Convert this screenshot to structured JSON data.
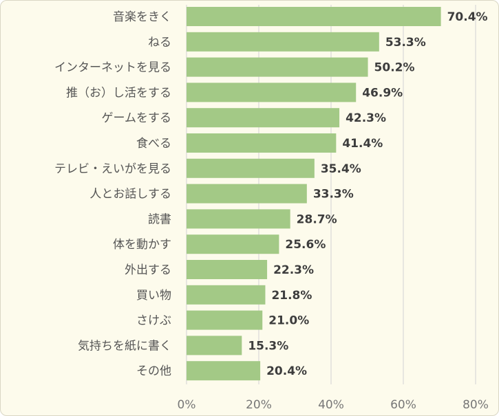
{
  "chart_data": {
    "type": "bar",
    "orientation": "horizontal",
    "categories": [
      "音楽をきく",
      "ねる",
      "インターネットを見る",
      "推（お）し活をする",
      "ゲームをする",
      "食べる",
      "テレビ・えいがを見る",
      "人とお話しする",
      "読書",
      "体を動かす",
      "外出する",
      "買い物",
      "さけぶ",
      "気持ちを紙に書く",
      "その他"
    ],
    "values": [
      70.4,
      53.3,
      50.2,
      46.9,
      42.3,
      41.4,
      35.4,
      33.3,
      28.7,
      25.6,
      22.3,
      21.8,
      21.0,
      15.3,
      20.4
    ],
    "value_labels": [
      "70.4%",
      "53.3%",
      "50.2%",
      "46.9%",
      "42.3%",
      "41.4%",
      "35.4%",
      "33.3%",
      "28.7%",
      "25.6%",
      "22.3%",
      "21.8%",
      "21.0%",
      "15.3%",
      "20.4%"
    ],
    "xticks": [
      0,
      20,
      40,
      60,
      80
    ],
    "xtick_labels": [
      "0%",
      "20%",
      "40%",
      "60%",
      "80%"
    ],
    "xlim": [
      0,
      80
    ],
    "grid": true,
    "colors": {
      "bar": "#a3c986",
      "grid": "#d9d9d9",
      "background": "#fdfbec"
    }
  }
}
